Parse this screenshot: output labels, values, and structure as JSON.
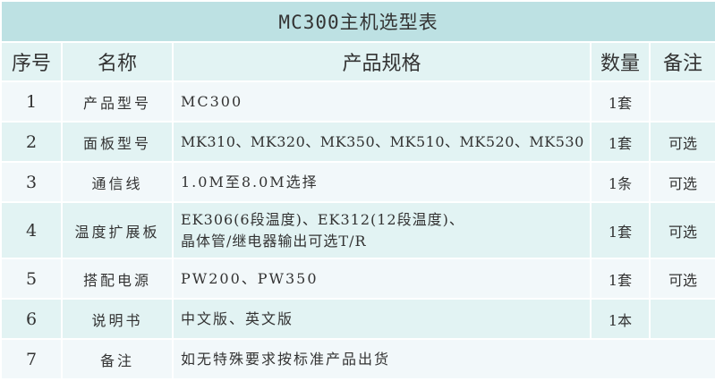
{
  "title": "MC300主机选型表",
  "headers": [
    "序号",
    "名称",
    "产品规格",
    "数量",
    "备注"
  ],
  "rows": [
    {
      "no": "1",
      "name": "产品型号",
      "spec": "MC300",
      "qty": "1套",
      "note": ""
    },
    {
      "no": "2",
      "name": "面板型号",
      "spec": "MK310、MK320、MK350、MK510、MK520、MK530",
      "qty": "1套",
      "note": "可选"
    },
    {
      "no": "3",
      "name": "通信线",
      "spec": "1.0M至8.0M选择",
      "qty": "1条",
      "note": "可选"
    },
    {
      "no": "4",
      "name": "温度扩展板",
      "spec": "EK306(6段温度)、EK312(12段温度)、",
      "spec2": "晶体管/继电器输出可选T/R",
      "qty": "1套",
      "note": "可选"
    },
    {
      "no": "5",
      "name": "搭配电源",
      "spec": "PW200、PW350",
      "qty": "1套",
      "note": "可选"
    },
    {
      "no": "6",
      "name": "说明书",
      "spec": "中文版、英文版",
      "qty": "1本",
      "note": ""
    },
    {
      "no": "7",
      "name": "备注",
      "spec": "如无特殊要求按标准产品出货"
    }
  ]
}
